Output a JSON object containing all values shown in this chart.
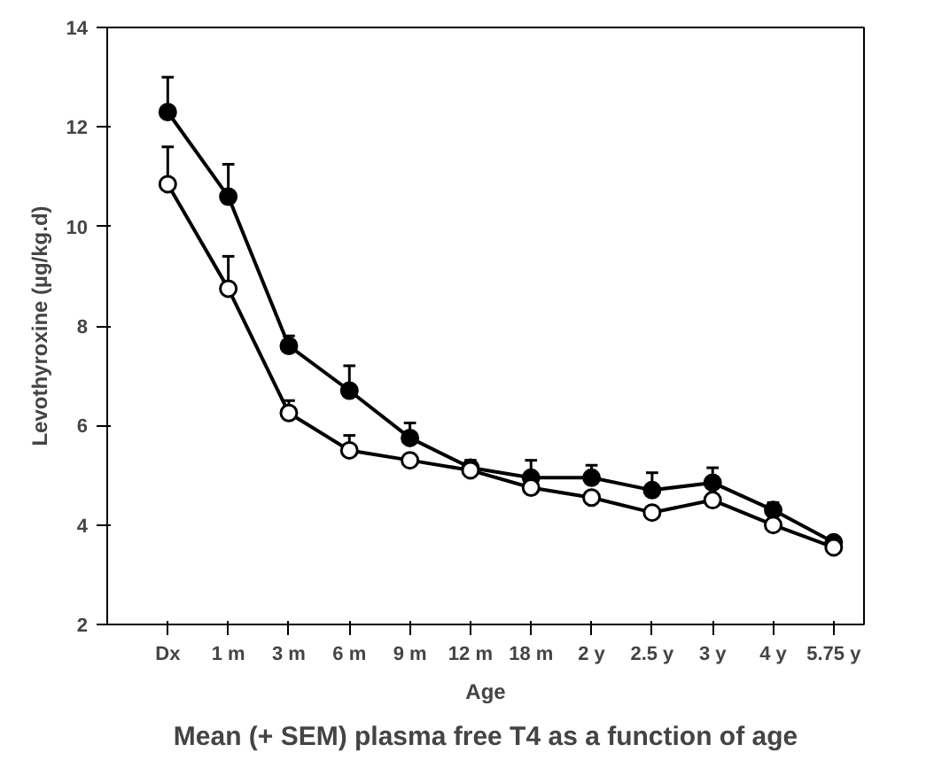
{
  "chart_data": {
    "type": "line",
    "title": "Mean (+ SEM) plasma free T4 as a function of age",
    "xlabel": "Age",
    "ylabel": "Levothyroxine (µg/kg.d)",
    "categories": [
      "Dx",
      "1 m",
      "3 m",
      "6 m",
      "9 m",
      "12 m",
      "18 m",
      "2 y",
      "2.5 y",
      "3 y",
      "4 y",
      "5.75 y"
    ],
    "series": [
      {
        "color": "#000000",
        "values": [
          12.3,
          10.6,
          7.6,
          6.7,
          5.75,
          5.15,
          4.95,
          4.95,
          4.7,
          4.85,
          4.3,
          3.65
        ],
        "errors": [
          [
            12.3,
            13.0
          ],
          [
            10.6,
            11.25
          ],
          [
            7.6,
            7.8
          ],
          [
            6.7,
            7.2
          ],
          [
            5.75,
            6.05
          ],
          [
            5.15,
            5.3
          ],
          [
            4.95,
            5.3
          ],
          [
            4.95,
            5.2
          ],
          [
            4.7,
            5.05
          ],
          [
            4.85,
            5.15
          ],
          [
            4.3,
            4.45
          ],
          [
            3.65,
            3.75
          ]
        ]
      },
      {
        "color": "#ffffff",
        "values": [
          10.85,
          8.75,
          6.25,
          5.5,
          5.3,
          5.1,
          4.75,
          4.55,
          4.25,
          4.5,
          4.0,
          3.55
        ],
        "errors": [
          [
            10.85,
            11.6
          ],
          [
            8.75,
            9.4
          ],
          [
            6.25,
            6.5
          ],
          [
            5.5,
            5.8
          ],
          null,
          null,
          null,
          null,
          null,
          null,
          null,
          null
        ]
      }
    ],
    "ylim": [
      2,
      14
    ],
    "yticks": [
      2,
      4,
      6,
      8,
      10,
      12,
      14
    ],
    "marker": "circle",
    "line_style": "solid",
    "grid": false
  }
}
